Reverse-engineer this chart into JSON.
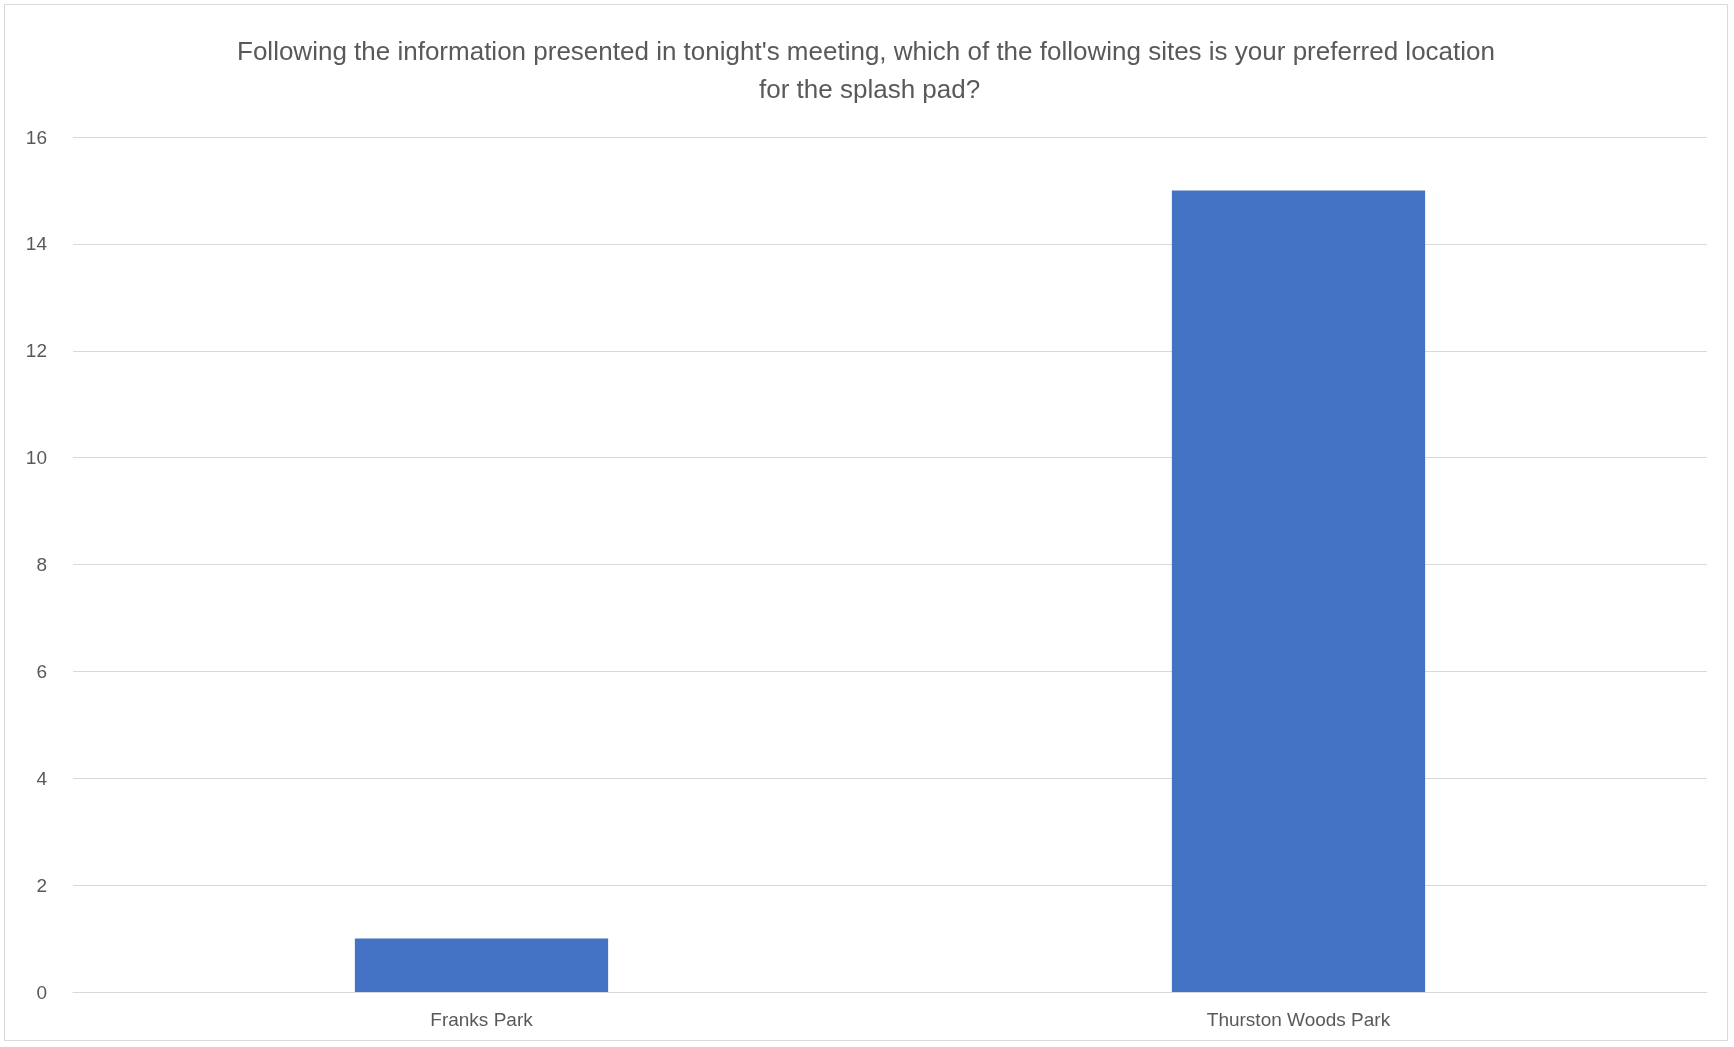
{
  "chart_data": {
    "type": "bar",
    "title": "Following the information presented in tonight's meeting, which of the following sites is your preferred location for the splash pad?",
    "categories": [
      "Franks Park",
      "Thurston Woods Park"
    ],
    "values": [
      1,
      15
    ],
    "color": "#4472c4",
    "ylim": [
      0,
      16
    ],
    "yticks": [
      0,
      2,
      4,
      6,
      8,
      10,
      12,
      14,
      16
    ],
    "grid": "y"
  }
}
